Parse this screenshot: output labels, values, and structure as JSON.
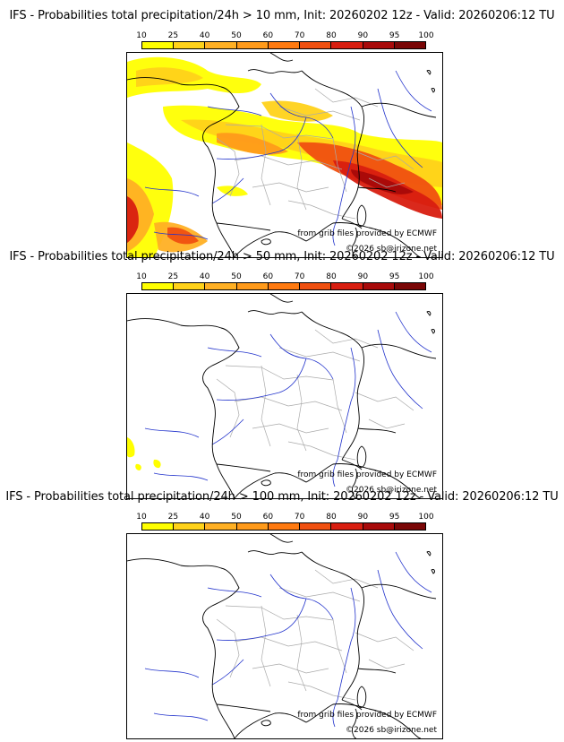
{
  "panels": [
    {
      "title": "IFS - Probabilities total precipitation/24h > 10 mm, Init: 20260202 12z - Valid: 20260206:12 TU",
      "credit": "from grib files provided by ECMWF",
      "copyright": "©2026 sb@irizone.net",
      "has_precip": true
    },
    {
      "title": "IFS - Probabilities total precipitation/24h > 50 mm, Init: 20260202 12z - Valid: 20260206:12 TU",
      "credit": "from grib files provided by ECMWF",
      "copyright": "©2026 sb@irizone.net",
      "has_precip": "light"
    },
    {
      "title": "IFS - Probabilities total precipitation/24h > 100 mm, Init: 20260202 12z - Valid: 20260206:12 TU",
      "credit": "from grib files provided by ECMWF",
      "copyright": "©2026 sb@irizone.net",
      "has_precip": false
    }
  ],
  "colorbar": {
    "ticks": [
      "10",
      "25",
      "40",
      "50",
      "60",
      "70",
      "80",
      "90",
      "95",
      "100"
    ],
    "colors": [
      "#ffff00",
      "#ffd21a",
      "#ffb024",
      "#ff9a1a",
      "#ff7a10",
      "#f05010",
      "#d81e10",
      "#a80a0a",
      "#7a0606"
    ]
  },
  "map_colors": {
    "coast": "#000000",
    "borders": "#000000",
    "regions": "#aaaaaa",
    "rivers": "#2233cc"
  }
}
